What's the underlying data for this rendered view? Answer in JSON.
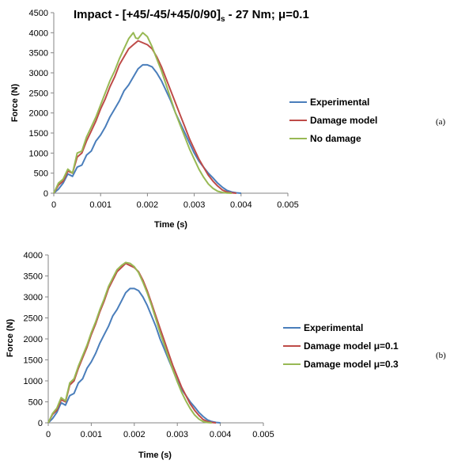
{
  "chart_data": [
    {
      "type": "line",
      "title": "Impact - [+45/-45/+45/0/90]",
      "title_subscript": "s",
      "title_suffix": " - 27 Nm; μ=0.1",
      "xlabel": "Time (s)",
      "ylabel": "Force (N)",
      "xlim": [
        0,
        0.005
      ],
      "ylim": [
        0,
        4500
      ],
      "xticks": [
        "0",
        "0.001",
        "0.002",
        "0.003",
        "0.004",
        "0.005"
      ],
      "yticks": [
        "0",
        "500",
        "1000",
        "1500",
        "2000",
        "2500",
        "3000",
        "3500",
        "4000",
        "4500"
      ],
      "panel_label": "(a)",
      "legend_position": "right",
      "grid": false,
      "series": [
        {
          "name": "Experimental",
          "color": "#4a7ebb",
          "x": [
            0,
            0.0001,
            0.0002,
            0.0003,
            0.0004,
            0.0005,
            0.0006,
            0.0007,
            0.0008,
            0.0009,
            0.001,
            0.0011,
            0.0012,
            0.0013,
            0.0014,
            0.0015,
            0.0016,
            0.0017,
            0.0018,
            0.0019,
            0.002,
            0.0021,
            0.0022,
            0.0023,
            0.0024,
            0.0025,
            0.0026,
            0.0027,
            0.0028,
            0.0029,
            0.003,
            0.0031,
            0.0032,
            0.0033,
            0.0034,
            0.0035,
            0.0036,
            0.0037,
            0.0038,
            0.0039,
            0.004
          ],
          "y": [
            0,
            100,
            250,
            480,
            420,
            650,
            700,
            950,
            1050,
            1300,
            1450,
            1650,
            1900,
            2100,
            2300,
            2550,
            2700,
            2900,
            3100,
            3200,
            3200,
            3150,
            3000,
            2800,
            2550,
            2300,
            2000,
            1750,
            1500,
            1250,
            1000,
            800,
            650,
            500,
            380,
            250,
            150,
            70,
            30,
            10,
            0
          ]
        },
        {
          "name": "Damage model",
          "color": "#be4b48",
          "x": [
            0,
            0.0001,
            0.0002,
            0.0003,
            0.0004,
            0.0005,
            0.0006,
            0.0007,
            0.0008,
            0.0009,
            0.001,
            0.0011,
            0.0012,
            0.0013,
            0.0014,
            0.0015,
            0.0016,
            0.0017,
            0.0018,
            0.0019,
            0.002,
            0.0021,
            0.0022,
            0.0023,
            0.0024,
            0.0025,
            0.0026,
            0.0027,
            0.0028,
            0.0029,
            0.003,
            0.0031,
            0.0032,
            0.0033,
            0.0034,
            0.0035,
            0.0036,
            0.0037,
            0.0038,
            0.0039
          ],
          "y": [
            0,
            200,
            300,
            550,
            500,
            900,
            1000,
            1300,
            1550,
            1800,
            2100,
            2350,
            2650,
            2900,
            3200,
            3400,
            3600,
            3700,
            3800,
            3750,
            3700,
            3600,
            3400,
            3150,
            2850,
            2550,
            2250,
            1950,
            1650,
            1350,
            1100,
            850,
            650,
            450,
            300,
            180,
            80,
            30,
            10,
            0
          ]
        },
        {
          "name": "No damage",
          "color": "#98b954",
          "x": [
            0,
            0.0001,
            0.0002,
            0.0003,
            0.0004,
            0.0005,
            0.0006,
            0.0007,
            0.0008,
            0.0009,
            0.001,
            0.0011,
            0.0012,
            0.0013,
            0.0014,
            0.0015,
            0.0016,
            0.0017,
            0.00175,
            0.0018,
            0.0019,
            0.002,
            0.0021,
            0.0022,
            0.0023,
            0.0024,
            0.0025,
            0.0026,
            0.0027,
            0.0028,
            0.0029,
            0.003,
            0.0031,
            0.0032,
            0.0033,
            0.0034,
            0.0035,
            0.0036,
            0.0037,
            0.0038
          ],
          "y": [
            0,
            250,
            350,
            600,
            500,
            1000,
            1050,
            1400,
            1650,
            1900,
            2200,
            2500,
            2800,
            3050,
            3350,
            3600,
            3850,
            4000,
            3870,
            3850,
            4000,
            3900,
            3650,
            3350,
            3050,
            2700,
            2350,
            2000,
            1700,
            1400,
            1100,
            850,
            600,
            400,
            230,
            120,
            50,
            20,
            5,
            0
          ]
        }
      ]
    },
    {
      "type": "line",
      "xlabel": "Time (s)",
      "ylabel": "Force (N)",
      "xlim": [
        0,
        0.005
      ],
      "ylim": [
        0,
        4000
      ],
      "xticks": [
        "0",
        "0.001",
        "0.002",
        "0.003",
        "0.004",
        "0.005"
      ],
      "yticks": [
        "0",
        "500",
        "1000",
        "1500",
        "2000",
        "2500",
        "3000",
        "3500",
        "4000"
      ],
      "panel_label": "(b)",
      "legend_position": "right",
      "grid": false,
      "series": [
        {
          "name": "Experimental",
          "color": "#4a7ebb",
          "x": [
            0,
            0.0001,
            0.0002,
            0.0003,
            0.0004,
            0.0005,
            0.0006,
            0.0007,
            0.0008,
            0.0009,
            0.001,
            0.0011,
            0.0012,
            0.0013,
            0.0014,
            0.0015,
            0.0016,
            0.0017,
            0.0018,
            0.0019,
            0.002,
            0.0021,
            0.0022,
            0.0023,
            0.0024,
            0.0025,
            0.0026,
            0.0027,
            0.0028,
            0.0029,
            0.003,
            0.0031,
            0.0032,
            0.0033,
            0.0034,
            0.0035,
            0.0036,
            0.0037,
            0.0038,
            0.0039,
            0.004
          ],
          "y": [
            0,
            100,
            250,
            480,
            420,
            650,
            700,
            950,
            1050,
            1300,
            1450,
            1650,
            1900,
            2100,
            2300,
            2550,
            2700,
            2900,
            3100,
            3200,
            3200,
            3150,
            3000,
            2800,
            2550,
            2300,
            2000,
            1750,
            1500,
            1250,
            1000,
            800,
            650,
            500,
            380,
            250,
            150,
            70,
            30,
            10,
            0
          ]
        },
        {
          "name": "Damage model μ=0.1",
          "color": "#be4b48",
          "x": [
            0,
            0.0001,
            0.0002,
            0.0003,
            0.0004,
            0.0005,
            0.0006,
            0.0007,
            0.0008,
            0.0009,
            0.001,
            0.0011,
            0.0012,
            0.0013,
            0.0014,
            0.0015,
            0.0016,
            0.0017,
            0.0018,
            0.0019,
            0.002,
            0.0021,
            0.0022,
            0.0023,
            0.0024,
            0.0025,
            0.0026,
            0.0027,
            0.0028,
            0.0029,
            0.003,
            0.0031,
            0.0032,
            0.0033,
            0.0034,
            0.0035,
            0.0036,
            0.0037,
            0.0038,
            0.0039
          ],
          "y": [
            0,
            200,
            300,
            550,
            500,
            900,
            1000,
            1300,
            1550,
            1800,
            2100,
            2350,
            2650,
            2900,
            3200,
            3400,
            3600,
            3700,
            3800,
            3750,
            3700,
            3600,
            3400,
            3150,
            2850,
            2550,
            2250,
            1950,
            1650,
            1350,
            1100,
            850,
            650,
            450,
            300,
            180,
            80,
            30,
            10,
            0
          ]
        },
        {
          "name": "Damage model μ=0.3",
          "color": "#98b954",
          "x": [
            0,
            0.0001,
            0.0002,
            0.0003,
            0.0004,
            0.0005,
            0.0006,
            0.0007,
            0.0008,
            0.0009,
            0.001,
            0.0011,
            0.0012,
            0.0013,
            0.0014,
            0.0015,
            0.0016,
            0.0017,
            0.0018,
            0.0019,
            0.002,
            0.0021,
            0.0022,
            0.0023,
            0.0024,
            0.0025,
            0.0026,
            0.0027,
            0.0028,
            0.0029,
            0.003,
            0.0031,
            0.0032,
            0.0033,
            0.0034,
            0.0035,
            0.0036,
            0.0037,
            0.0038
          ],
          "y": [
            0,
            220,
            350,
            600,
            520,
            950,
            1050,
            1350,
            1600,
            1850,
            2150,
            2400,
            2700,
            2950,
            3250,
            3450,
            3650,
            3750,
            3820,
            3800,
            3720,
            3580,
            3350,
            3100,
            2800,
            2480,
            2150,
            1850,
            1550,
            1250,
            980,
            730,
            520,
            340,
            190,
            90,
            30,
            8,
            0
          ]
        }
      ]
    }
  ]
}
